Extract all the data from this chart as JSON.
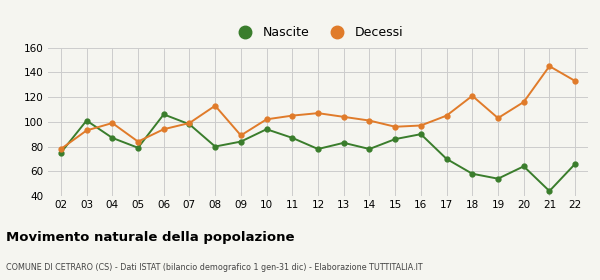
{
  "years": [
    "02",
    "03",
    "04",
    "05",
    "06",
    "07",
    "08",
    "09",
    "10",
    "11",
    "12",
    "13",
    "14",
    "15",
    "16",
    "17",
    "18",
    "19",
    "20",
    "21",
    "22"
  ],
  "nascite": [
    75,
    101,
    87,
    79,
    106,
    98,
    80,
    84,
    94,
    87,
    78,
    83,
    78,
    86,
    90,
    70,
    58,
    54,
    64,
    44,
    66
  ],
  "decessi": [
    78,
    93,
    99,
    84,
    94,
    99,
    113,
    89,
    102,
    105,
    107,
    104,
    101,
    96,
    97,
    105,
    121,
    103,
    116,
    145,
    133
  ],
  "nascite_color": "#3a7d2c",
  "decessi_color": "#e07b2a",
  "title": "Movimento naturale della popolazione",
  "subtitle": "COMUNE DI CETRARO (CS) - Dati ISTAT (bilancio demografico 1 gen-31 dic) - Elaborazione TUTTITALIA.IT",
  "ylim": [
    40,
    160
  ],
  "yticks": [
    40,
    60,
    80,
    100,
    120,
    140,
    160
  ],
  "legend_nascite": "Nascite",
  "legend_decessi": "Decessi",
  "bg_color": "#f5f5f0",
  "grid_color": "#cccccc"
}
